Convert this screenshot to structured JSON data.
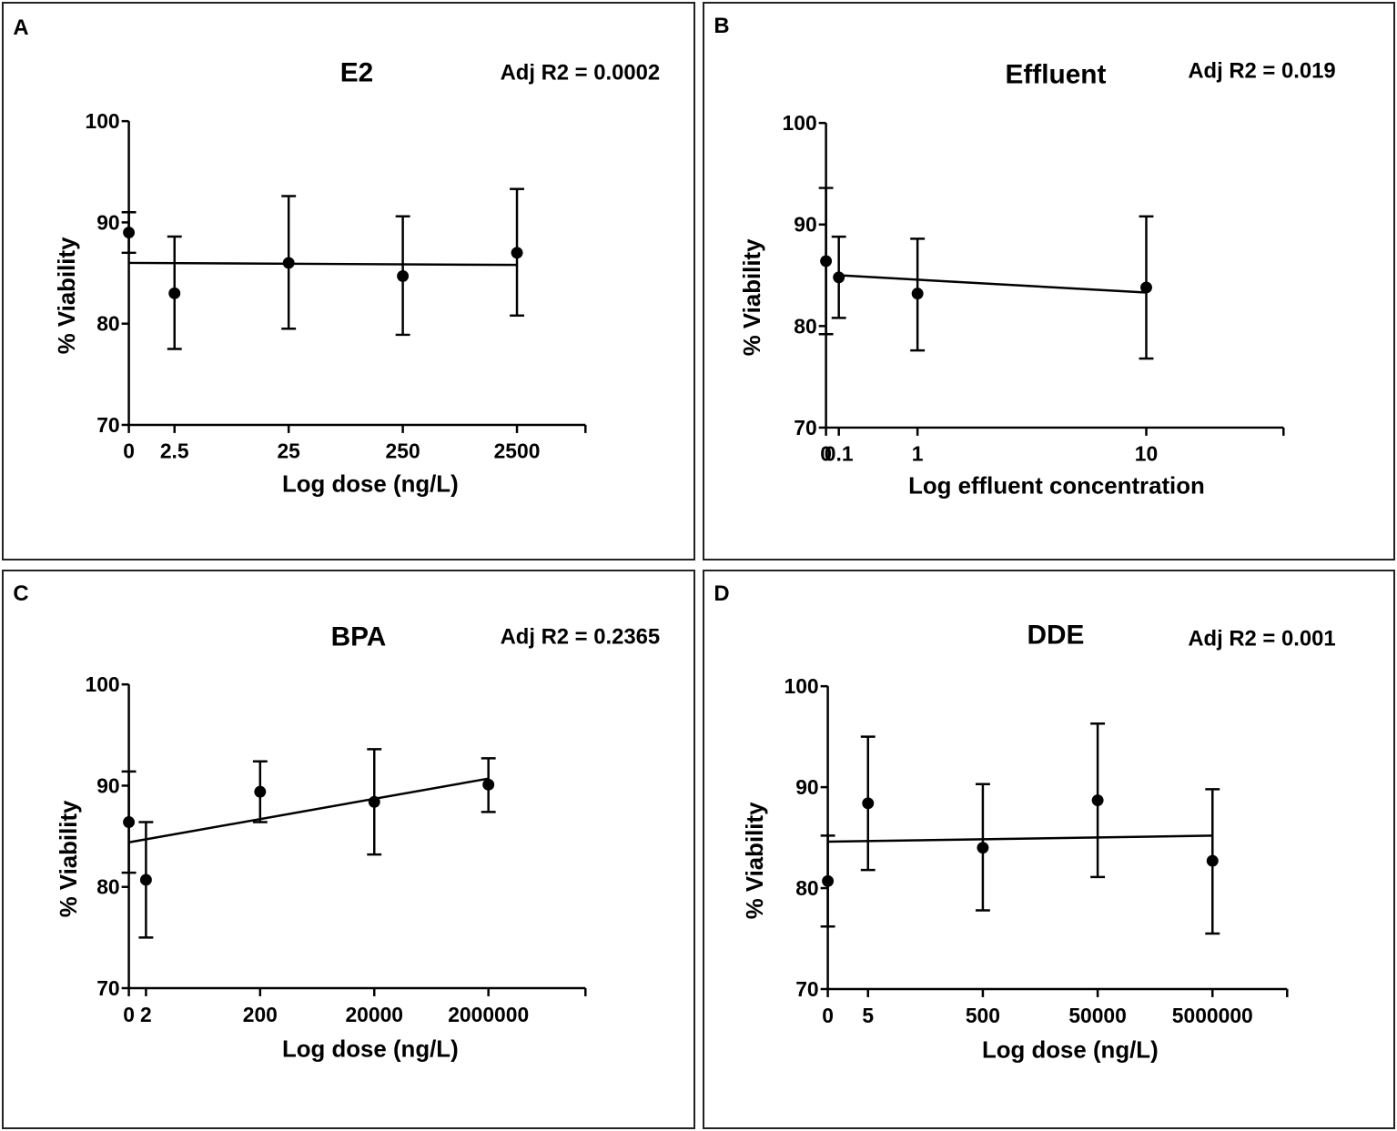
{
  "chart_data": [
    {
      "type": "scatter",
      "panel_label": "A",
      "title": "E2",
      "annotation": "Adj R2 = 0.0002",
      "xlabel": "Log dose (ng/L)",
      "ylabel": "% Viability",
      "ylim": [
        70,
        100
      ],
      "y_ticks": [
        70,
        80,
        90,
        100
      ],
      "x_ticks": [
        "0",
        "2.5",
        "25",
        "250",
        "2500"
      ],
      "x_tick_positions": [
        0,
        0.4,
        1.4,
        2.4,
        3.4
      ],
      "xlim": [
        0,
        4.0
      ],
      "points": [
        {
          "x": 0,
          "label": "0",
          "mean": 89.0,
          "upper": 91.0,
          "lower": 87.0
        },
        {
          "x": 0.4,
          "label": "2.5",
          "mean": 83.0,
          "upper": 88.6,
          "lower": 77.5
        },
        {
          "x": 1.4,
          "label": "25",
          "mean": 86.0,
          "upper": 92.6,
          "lower": 79.5
        },
        {
          "x": 2.4,
          "label": "250",
          "mean": 84.7,
          "upper": 90.6,
          "lower": 78.9
        },
        {
          "x": 3.4,
          "label": "2500",
          "mean": 87.0,
          "upper": 93.3,
          "lower": 80.8
        }
      ],
      "fit_line": {
        "x": [
          0,
          3.4
        ],
        "y": [
          86.0,
          85.8
        ]
      }
    },
    {
      "type": "scatter",
      "panel_label": "B",
      "title": "Effluent",
      "annotation": "Adj R2 = 0.019",
      "xlabel": "Log effluent concentration",
      "ylabel": "% Viability",
      "ylim": [
        70,
        100
      ],
      "y_ticks": [
        70,
        80,
        90,
        100
      ],
      "x_ticks": [
        "0",
        "0.1",
        "1",
        "10"
      ],
      "x_tick_positions": [
        0,
        0.056,
        0.4,
        1.4
      ],
      "xlim": [
        0,
        2.0
      ],
      "points": [
        {
          "x": 0,
          "label": "0",
          "mean": 86.4,
          "upper": 93.6,
          "lower": 79.2
        },
        {
          "x": 0.056,
          "label": "0.1",
          "mean": 84.8,
          "upper": 88.8,
          "lower": 80.8
        },
        {
          "x": 0.4,
          "label": "1",
          "mean": 83.2,
          "upper": 88.6,
          "lower": 77.6
        },
        {
          "x": 1.4,
          "label": "10",
          "mean": 83.8,
          "upper": 90.8,
          "lower": 76.8
        }
      ],
      "fit_line": {
        "x": [
          0.056,
          1.4
        ],
        "y": [
          85.0,
          83.3
        ]
      }
    },
    {
      "type": "scatter",
      "panel_label": "C",
      "title": "BPA",
      "annotation": "Adj R2 = 0.2365",
      "xlabel": "Log dose (ng/L)",
      "ylabel": "% Viability",
      "ylim": [
        70,
        100
      ],
      "y_ticks": [
        70,
        80,
        90,
        100
      ],
      "x_ticks": [
        "0",
        "2",
        "200",
        "20000",
        "2000000"
      ],
      "x_tick_positions": [
        0,
        0.3,
        2.3,
        4.3,
        6.3
      ],
      "xlim": [
        0,
        8.0
      ],
      "points": [
        {
          "x": 0,
          "label": "0",
          "mean": 86.4,
          "upper": 91.4,
          "lower": 81.4
        },
        {
          "x": 0.3,
          "label": "2",
          "mean": 80.7,
          "upper": 86.4,
          "lower": 75.0
        },
        {
          "x": 2.3,
          "label": "200",
          "mean": 89.4,
          "upper": 92.4,
          "lower": 86.4
        },
        {
          "x": 4.3,
          "label": "20000",
          "mean": 88.4,
          "upper": 93.6,
          "lower": 83.2
        },
        {
          "x": 6.3,
          "label": "2000000",
          "mean": 90.1,
          "upper": 92.7,
          "lower": 87.4
        }
      ],
      "fit_line": {
        "x": [
          0,
          6.3
        ],
        "y": [
          84.4,
          90.7
        ]
      }
    },
    {
      "type": "scatter",
      "panel_label": "D",
      "title": "DDE",
      "annotation": "Adj R2 = 0.001",
      "xlabel": "Log dose (ng/L)",
      "ylabel": "% Viability",
      "ylim": [
        70,
        100
      ],
      "y_ticks": [
        70,
        80,
        90,
        100
      ],
      "x_ticks": [
        "0",
        "5",
        "500",
        "50000",
        "5000000"
      ],
      "x_tick_positions": [
        0,
        0.7,
        2.7,
        4.7,
        6.7
      ],
      "xlim": [
        0,
        8.0
      ],
      "points": [
        {
          "x": 0,
          "label": "0",
          "mean": 80.7,
          "upper": 85.2,
          "lower": 76.2
        },
        {
          "x": 0.7,
          "label": "5",
          "mean": 88.4,
          "upper": 95.0,
          "lower": 81.8
        },
        {
          "x": 2.7,
          "label": "500",
          "mean": 84.0,
          "upper": 90.3,
          "lower": 77.8
        },
        {
          "x": 4.7,
          "label": "50000",
          "mean": 88.7,
          "upper": 96.3,
          "lower": 81.1
        },
        {
          "x": 6.7,
          "label": "5000000",
          "mean": 82.7,
          "upper": 89.8,
          "lower": 75.5
        }
      ],
      "fit_line": {
        "x": [
          0,
          6.7
        ],
        "y": [
          84.6,
          85.2
        ]
      }
    }
  ]
}
